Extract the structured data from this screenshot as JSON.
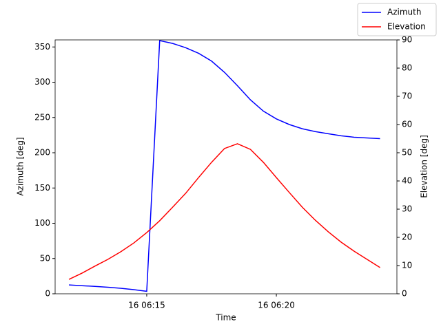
{
  "chart_data": {
    "type": "line",
    "xlabel": "Time",
    "ylabel": "Azimuth [deg]",
    "y2label": "Elevation [deg]",
    "x": [
      "16 06:12:00",
      "16 06:12:30",
      "16 06:13:00",
      "16 06:13:30",
      "16 06:14:00",
      "16 06:14:30",
      "16 06:15:00",
      "16 06:15:30",
      "16 06:16:00",
      "16 06:16:30",
      "16 06:17:00",
      "16 06:17:30",
      "16 06:18:00",
      "16 06:18:30",
      "16 06:19:00",
      "16 06:19:30",
      "16 06:20:00",
      "16 06:20:30",
      "16 06:21:00",
      "16 06:21:30",
      "16 06:22:00",
      "16 06:22:30",
      "16 06:23:00",
      "16 06:23:30",
      "16 06:24:00"
    ],
    "series": [
      {
        "name": "Azimuth",
        "color": "#0000ff",
        "axis": "y",
        "values": [
          12.6,
          11.5,
          10.5,
          9.3,
          7.8,
          5.8,
          3.5,
          359,
          355,
          349,
          341,
          330,
          314,
          295,
          275,
          259,
          248,
          240,
          234,
          230,
          227,
          224,
          222,
          221,
          220
        ]
      },
      {
        "name": "Elevation",
        "color": "#ff0000",
        "axis": "y2",
        "values": [
          5.1,
          7.3,
          9.8,
          12.2,
          14.9,
          18,
          21.7,
          25.9,
          30.7,
          35.6,
          41.2,
          46.6,
          51.5,
          53.2,
          51.2,
          46.6,
          41.2,
          35.9,
          30.7,
          26.1,
          22,
          18.3,
          15.1,
          12.2,
          9.3
        ]
      }
    ],
    "xlim": [
      "16 06:11:28",
      "16 06:24:39"
    ],
    "xticks": [
      "16 06:15",
      "16 06:20"
    ],
    "ylim": [
      0,
      360
    ],
    "yticks": [
      0,
      50,
      100,
      150,
      200,
      250,
      300,
      350
    ],
    "y2lim": [
      0,
      90
    ],
    "y2ticks": [
      0,
      10,
      20,
      30,
      40,
      50,
      60,
      70,
      80,
      90
    ],
    "legend": "upper right"
  }
}
